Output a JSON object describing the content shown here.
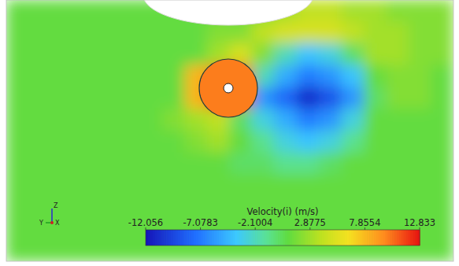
{
  "chart_data": {
    "type": "heatmap",
    "colorbar_title": "Velocity(i) (m/s)",
    "color_range": [
      -12.056,
      12.833
    ],
    "color_ticks": [
      -12.056,
      -7.0783,
      -2.1004,
      2.8775,
      7.8554,
      12.833
    ],
    "rotor_value": 10,
    "triad": {
      "x": "X",
      "y": "Y",
      "z": "Z"
    },
    "cells": [
      [
        1,
        1,
        1,
        1,
        1,
        1,
        1,
        1,
        1,
        1,
        1,
        2,
        3,
        4,
        4,
        3,
        3,
        2,
        2,
        2
      ],
      [
        1,
        1,
        1,
        1,
        1,
        1,
        1,
        1,
        1,
        2,
        2,
        4,
        5,
        5,
        5,
        4,
        3,
        3,
        2,
        2
      ],
      [
        1,
        1,
        1,
        1,
        1,
        1,
        1,
        1,
        1,
        3,
        5,
        2,
        -2,
        -4,
        -3,
        0,
        3,
        3,
        2,
        2
      ],
      [
        1,
        1,
        1,
        1,
        1,
        1,
        1,
        1,
        8,
        10,
        11,
        -2,
        -5,
        -7,
        -6,
        -4,
        1,
        2,
        2,
        1
      ],
      [
        1,
        1,
        1,
        1,
        1,
        1,
        1,
        1,
        8,
        11,
        12,
        -6,
        -8,
        -11,
        -9,
        -6,
        0,
        2,
        2,
        1
      ],
      [
        1,
        1,
        1,
        1,
        1,
        1,
        1,
        2,
        3,
        4,
        0,
        -3,
        -5,
        -7,
        -6,
        -3,
        1,
        1,
        1,
        1
      ],
      [
        1,
        1,
        1,
        1,
        1,
        1,
        1,
        1,
        2,
        3,
        1,
        -1,
        -3,
        -4,
        -3,
        -1,
        1,
        1,
        1,
        1
      ],
      [
        1,
        1,
        1,
        1,
        1,
        1,
        1,
        1,
        1,
        1,
        0,
        0,
        -1,
        -1,
        0,
        1,
        1,
        1,
        1,
        1
      ],
      [
        1,
        1,
        1,
        1,
        1,
        1,
        1,
        1,
        1,
        1,
        1,
        1,
        1,
        1,
        1,
        1,
        1,
        1,
        1,
        1
      ],
      [
        1,
        1,
        1,
        1,
        1,
        1,
        1,
        1,
        1,
        1,
        1,
        1,
        1,
        1,
        1,
        1,
        1,
        1,
        1,
        1
      ],
      [
        1,
        1,
        1,
        1,
        1,
        1,
        1,
        1,
        1,
        1,
        1,
        1,
        1,
        1,
        1,
        1,
        1,
        1,
        1,
        1
      ],
      [
        1,
        1,
        1,
        1,
        1,
        1,
        1,
        1,
        1,
        1,
        1,
        1,
        1,
        1,
        1,
        1,
        1,
        1,
        1,
        1
      ]
    ]
  }
}
